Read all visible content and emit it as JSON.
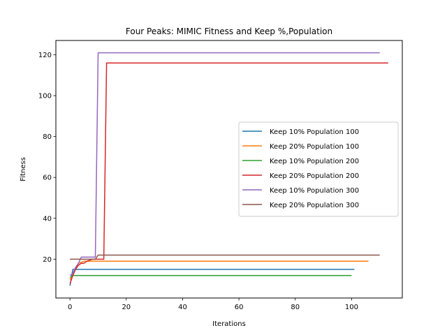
{
  "chart_data": {
    "type": "line",
    "title": "Four Peaks: MIMIC Fitness and Keep %,Population",
    "xlabel": "Iterations",
    "ylabel": "Fitness",
    "xlim": [
      -5,
      118
    ],
    "ylim": [
      1,
      127
    ],
    "xticks": [
      0,
      20,
      40,
      60,
      80,
      100
    ],
    "yticks": [
      20,
      40,
      60,
      80,
      100,
      120
    ],
    "grid": false,
    "legend_position": "center-right",
    "series": [
      {
        "name": "Keep 10% Population 100",
        "color": "#1f77b4",
        "points": [
          [
            0,
            7
          ],
          [
            1,
            15
          ],
          [
            101,
            15
          ]
        ]
      },
      {
        "name": "Keep 20% Population 100",
        "color": "#ff7f0e",
        "points": [
          [
            0,
            10
          ],
          [
            1,
            12
          ],
          [
            2,
            15
          ],
          [
            3,
            18
          ],
          [
            5,
            19
          ],
          [
            106,
            19
          ]
        ]
      },
      {
        "name": "Keep 10% Population 200",
        "color": "#2ca02c",
        "points": [
          [
            0,
            11
          ],
          [
            1,
            12
          ],
          [
            100,
            12
          ]
        ]
      },
      {
        "name": "Keep 20% Population 200",
        "color": "#d62728",
        "points": [
          [
            0,
            8
          ],
          [
            1,
            12
          ],
          [
            2,
            15
          ],
          [
            3,
            17
          ],
          [
            4,
            18
          ],
          [
            5,
            18
          ],
          [
            6,
            19
          ],
          [
            8,
            20
          ],
          [
            12,
            20
          ],
          [
            13,
            116
          ],
          [
            113,
            116
          ]
        ]
      },
      {
        "name": "Keep 10% Population 300",
        "color": "#9467bd",
        "points": [
          [
            0,
            12
          ],
          [
            1,
            13
          ],
          [
            2,
            16
          ],
          [
            3,
            18
          ],
          [
            4,
            21
          ],
          [
            9,
            21
          ],
          [
            10,
            121
          ],
          [
            110,
            121
          ]
        ]
      },
      {
        "name": "Keep 20% Population 300",
        "color": "#8c564b",
        "points": [
          [
            0,
            20
          ],
          [
            9,
            20
          ],
          [
            10,
            22
          ],
          [
            110,
            22
          ]
        ]
      }
    ]
  }
}
